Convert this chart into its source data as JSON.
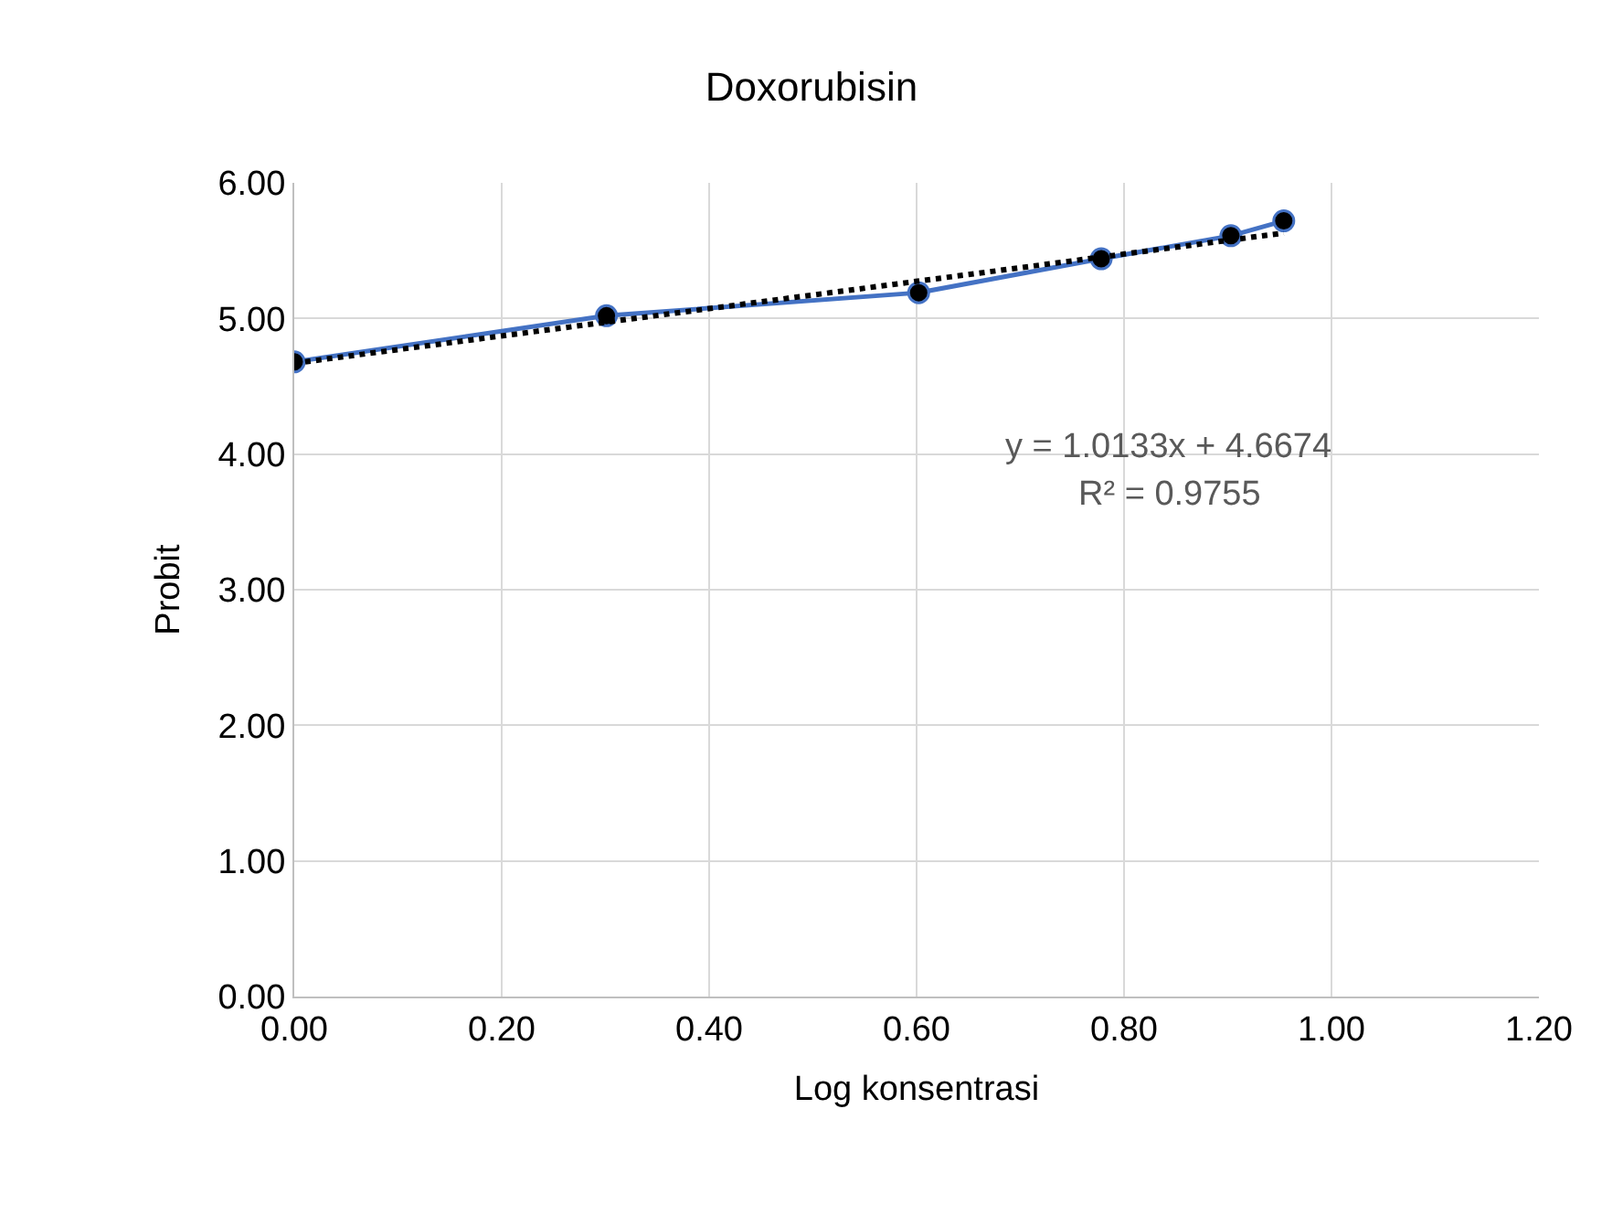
{
  "chart_data": {
    "type": "line",
    "title": "Doxorubisin",
    "xlabel": "Log konsentrasi",
    "ylabel": "Probit",
    "series": [
      {
        "color": "#4472c4",
        "marker": "circle",
        "line_style": "solid",
        "x": [
          0,
          0.301,
          0.602,
          0.778,
          0.903,
          0.954
        ],
        "values": [
          4.68,
          5.02,
          5.19,
          5.44,
          5.61,
          5.72
        ]
      },
      {
        "color": "#000000",
        "marker": "none",
        "line_style": "dotted",
        "x": [
          0,
          0.954
        ],
        "values": [
          4.67,
          5.63
        ]
      }
    ],
    "xlim": [
      0,
      1.2
    ],
    "xticks": [
      {
        "value": 0,
        "label": "0.00"
      },
      {
        "value": 0.2,
        "label": "0.20"
      },
      {
        "value": 0.4,
        "label": "0.40"
      },
      {
        "value": 0.6,
        "label": "0.60"
      },
      {
        "value": 0.8,
        "label": "0.80"
      },
      {
        "value": 1.0,
        "label": "1.00"
      },
      {
        "value": 1.2,
        "label": "1.20"
      }
    ],
    "ylim": [
      0,
      6
    ],
    "yticks": [
      {
        "value": 0,
        "label": "0.00"
      },
      {
        "value": 1,
        "label": "1.00"
      },
      {
        "value": 2,
        "label": "2.00"
      },
      {
        "value": 3,
        "label": "3.00"
      },
      {
        "value": 4,
        "label": "4.00"
      },
      {
        "value": 5,
        "label": "5.00"
      },
      {
        "value": 6,
        "label": "6.00"
      }
    ],
    "grid": true,
    "annotations": [
      "y = 1.0133x + 4.6674",
      "R² = 0.9755"
    ]
  }
}
